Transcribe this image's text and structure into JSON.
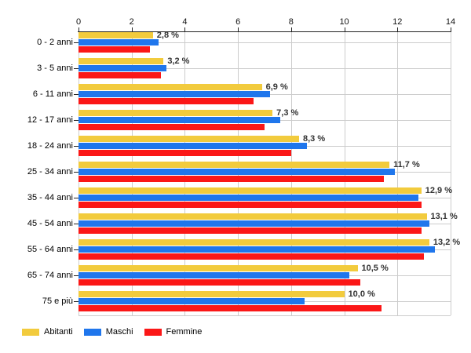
{
  "chart_data": {
    "type": "bar",
    "orientation": "horizontal",
    "title": "",
    "categories": [
      "0 - 2 anni",
      "3 - 5 anni",
      "6 - 11 anni",
      "12 - 17 anni",
      "18 - 24 anni",
      "25 - 34 anni",
      "35 - 44 anni",
      "45 - 54 anni",
      "55 - 64 anni",
      "65 - 74 anni",
      "75 e più"
    ],
    "series": [
      {
        "name": "Abitanti",
        "color": "#F2CB3D",
        "values": [
          2.8,
          3.2,
          6.9,
          7.3,
          8.3,
          11.7,
          12.9,
          13.1,
          13.2,
          10.5,
          10.0
        ]
      },
      {
        "name": "Maschi",
        "color": "#1F76EC",
        "values": [
          3.0,
          3.3,
          7.2,
          7.6,
          8.6,
          11.9,
          12.8,
          13.2,
          13.4,
          10.2,
          8.5
        ]
      },
      {
        "name": "Femmine",
        "color": "#FB1717",
        "values": [
          2.7,
          3.1,
          6.6,
          7.0,
          8.0,
          11.5,
          12.9,
          12.9,
          13.0,
          10.6,
          11.4
        ]
      }
    ],
    "data_labels": [
      "2,8 %",
      "3,2 %",
      "6,9 %",
      "7,3 %",
      "8,3 %",
      "11,7 %",
      "12,9 %",
      "13,1 %",
      "13,2 %",
      "10,5 %",
      "10,0 %"
    ],
    "xlim": [
      0,
      14
    ],
    "x_ticks": [
      "0",
      "2",
      "4",
      "6",
      "8",
      "10",
      "12",
      "14"
    ],
    "grid": true,
    "legend_position": "bottom-left"
  },
  "colors": {
    "grid": "#cccccc",
    "axis": "#222222",
    "value_label": "#333333",
    "background": "#ffffff"
  }
}
